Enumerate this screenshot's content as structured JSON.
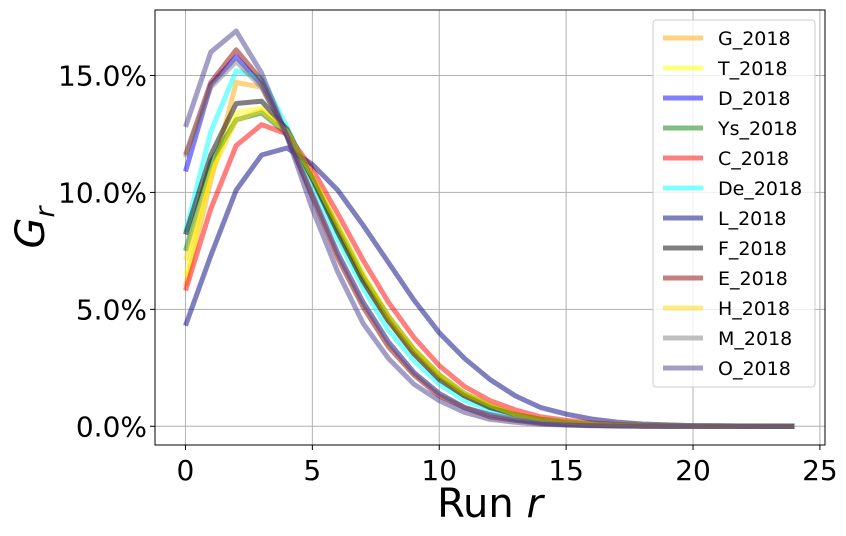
{
  "chart_data": {
    "type": "line",
    "title": "",
    "xlabel_main": "Run ",
    "xlabel_var": "r",
    "ylabel_main": "G",
    "ylabel_sub": "r",
    "xlim": [
      -1.2,
      25.2
    ],
    "ylim": [
      -0.008,
      0.178
    ],
    "xticks": [
      0,
      5,
      10,
      15,
      20,
      25
    ],
    "xtick_labels": [
      "0",
      "5",
      "10",
      "15",
      "20",
      "25"
    ],
    "yticks": [
      0.0,
      0.05,
      0.1,
      0.15
    ],
    "ytick_labels": [
      "0.0%",
      "5.0%",
      "10.0%",
      "15.0%"
    ],
    "grid": true,
    "legend_position": "top-right",
    "x": [
      0,
      1,
      2,
      3,
      4,
      5,
      6,
      7,
      8,
      9,
      10,
      11,
      12,
      13,
      14,
      15,
      16,
      17,
      18,
      19,
      20,
      21,
      22,
      23,
      24
    ],
    "series": [
      {
        "name": "G_2018",
        "color": "#ffa500",
        "values": [
          0.06,
          0.105,
          0.147,
          0.145,
          0.125,
          0.105,
          0.083,
          0.062,
          0.045,
          0.031,
          0.021,
          0.013,
          0.008,
          0.005,
          0.003,
          0.0018,
          0.001,
          0.0006,
          0.0003,
          0.0002,
          0.0001,
          0.0001,
          0.0,
          0.0,
          0.0
        ]
      },
      {
        "name": "T_2018",
        "color": "#ffff00",
        "values": [
          0.064,
          0.108,
          0.134,
          0.136,
          0.126,
          0.107,
          0.086,
          0.065,
          0.047,
          0.033,
          0.022,
          0.014,
          0.009,
          0.005,
          0.003,
          0.0018,
          0.001,
          0.0006,
          0.0003,
          0.0002,
          0.0001,
          0.0001,
          0.0,
          0.0,
          0.0
        ]
      },
      {
        "name": "D_2018",
        "color": "#0000ff",
        "values": [
          0.109,
          0.146,
          0.158,
          0.146,
          0.124,
          0.099,
          0.074,
          0.053,
          0.036,
          0.023,
          0.014,
          0.008,
          0.005,
          0.003,
          0.0015,
          0.0008,
          0.0004,
          0.0002,
          0.0001,
          0.0,
          0.0,
          0.0,
          0.0,
          0.0,
          0.0
        ]
      },
      {
        "name": "Ys_2018",
        "color": "#008000",
        "values": [
          0.075,
          0.113,
          0.131,
          0.134,
          0.125,
          0.106,
          0.085,
          0.064,
          0.047,
          0.033,
          0.022,
          0.014,
          0.009,
          0.005,
          0.003,
          0.0018,
          0.001,
          0.0006,
          0.0003,
          0.0002,
          0.0001,
          0.0,
          0.0,
          0.0,
          0.0
        ]
      },
      {
        "name": "C_2018",
        "color": "#ff0000",
        "values": [
          0.058,
          0.093,
          0.12,
          0.129,
          0.125,
          0.11,
          0.091,
          0.071,
          0.053,
          0.038,
          0.026,
          0.017,
          0.011,
          0.007,
          0.004,
          0.0025,
          0.0014,
          0.0008,
          0.0004,
          0.0002,
          0.0001,
          0.0001,
          0.0,
          0.0,
          0.0
        ]
      },
      {
        "name": "De_2018",
        "color": "#00ffff",
        "values": [
          0.083,
          0.126,
          0.152,
          0.149,
          0.128,
          0.104,
          0.08,
          0.059,
          0.041,
          0.028,
          0.018,
          0.011,
          0.007,
          0.004,
          0.002,
          0.0012,
          0.0007,
          0.0004,
          0.0002,
          0.0001,
          0.0,
          0.0,
          0.0,
          0.0,
          0.0
        ]
      },
      {
        "name": "L_2018",
        "color": "#000080",
        "values": [
          0.043,
          0.073,
          0.101,
          0.116,
          0.119,
          0.112,
          0.101,
          0.086,
          0.07,
          0.054,
          0.04,
          0.029,
          0.02,
          0.013,
          0.008,
          0.0052,
          0.0031,
          0.0018,
          0.001,
          0.0006,
          0.0003,
          0.0002,
          0.0001,
          0.0,
          0.0
        ]
      },
      {
        "name": "F_2018",
        "color": "#000000",
        "values": [
          0.082,
          0.116,
          0.138,
          0.139,
          0.127,
          0.106,
          0.083,
          0.062,
          0.045,
          0.031,
          0.02,
          0.013,
          0.008,
          0.005,
          0.003,
          0.0016,
          0.0009,
          0.0005,
          0.0003,
          0.0001,
          0.0001,
          0.0,
          0.0,
          0.0,
          0.0
        ]
      },
      {
        "name": "E_2018",
        "color": "#8b0000",
        "values": [
          0.116,
          0.147,
          0.161,
          0.148,
          0.124,
          0.098,
          0.072,
          0.051,
          0.034,
          0.022,
          0.013,
          0.008,
          0.004,
          0.0025,
          0.0013,
          0.0007,
          0.0004,
          0.0002,
          0.0001,
          0.0,
          0.0,
          0.0,
          0.0,
          0.0,
          0.0
        ]
      },
      {
        "name": "H_2018",
        "color": "#ffd700",
        "values": [
          0.071,
          0.108,
          0.131,
          0.135,
          0.126,
          0.107,
          0.086,
          0.065,
          0.047,
          0.033,
          0.022,
          0.014,
          0.009,
          0.005,
          0.003,
          0.0018,
          0.001,
          0.0006,
          0.0003,
          0.0002,
          0.0001,
          0.0,
          0.0,
          0.0,
          0.0
        ]
      },
      {
        "name": "M_2018",
        "color": "#808080",
        "values": [
          0.115,
          0.145,
          0.156,
          0.145,
          0.124,
          0.099,
          0.074,
          0.053,
          0.036,
          0.023,
          0.014,
          0.008,
          0.005,
          0.003,
          0.0015,
          0.0008,
          0.0004,
          0.0002,
          0.0001,
          0.0,
          0.0,
          0.0,
          0.0,
          0.0,
          0.0
        ]
      },
      {
        "name": "O_2018",
        "color": "#483d8b",
        "values": [
          0.128,
          0.16,
          0.169,
          0.151,
          0.124,
          0.093,
          0.066,
          0.044,
          0.029,
          0.018,
          0.011,
          0.006,
          0.003,
          0.0017,
          0.0009,
          0.0005,
          0.0002,
          0.0001,
          0.0,
          0.0,
          0.0,
          0.0,
          0.0,
          0.0,
          0.0
        ]
      }
    ]
  }
}
